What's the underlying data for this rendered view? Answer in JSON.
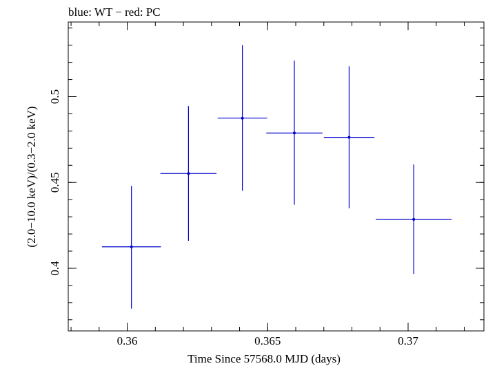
{
  "chart_data": {
    "type": "scatter",
    "title": "blue: WT − red: PC",
    "xlabel": "Time Since 57568.0 MJD (days)",
    "ylabel": "(2.0−10.0 keV)/(0.3−2.0 keV)",
    "xlim": [
      0.3579,
      0.3727
    ],
    "ylim": [
      0.3635,
      0.5435
    ],
    "x_ticks": {
      "major": [
        0.36,
        0.365,
        0.37
      ],
      "major_labels": [
        "0.36",
        "0.365",
        "0.37"
      ],
      "minor_step": 0.001
    },
    "y_ticks": {
      "major": [
        0.4,
        0.45,
        0.5
      ],
      "major_labels": [
        "0.4",
        "0.45",
        "0.5"
      ],
      "minor_step": 0.01
    },
    "grid": false,
    "series": [
      {
        "color": "#0000cc",
        "points": [
          {
            "x": 0.36015,
            "xerr": 0.00105,
            "y": 0.4125,
            "yerr_low": 0.036,
            "yerr_high": 0.0355
          },
          {
            "x": 0.36218,
            "xerr": 0.001,
            "y": 0.4552,
            "yerr_low": 0.0392,
            "yerr_high": 0.0393
          },
          {
            "x": 0.3641,
            "xerr": 0.00088,
            "y": 0.4875,
            "yerr_low": 0.0423,
            "yerr_high": 0.0425
          },
          {
            "x": 0.36595,
            "xerr": 0.001,
            "y": 0.4788,
            "yerr_low": 0.0418,
            "yerr_high": 0.0422
          },
          {
            "x": 0.3679,
            "xerr": 0.0009,
            "y": 0.4763,
            "yerr_low": 0.0413,
            "yerr_high": 0.0414
          },
          {
            "x": 0.3702,
            "xerr": 0.00135,
            "y": 0.4285,
            "yerr_low": 0.0318,
            "yerr_high": 0.032
          }
        ]
      }
    ]
  }
}
